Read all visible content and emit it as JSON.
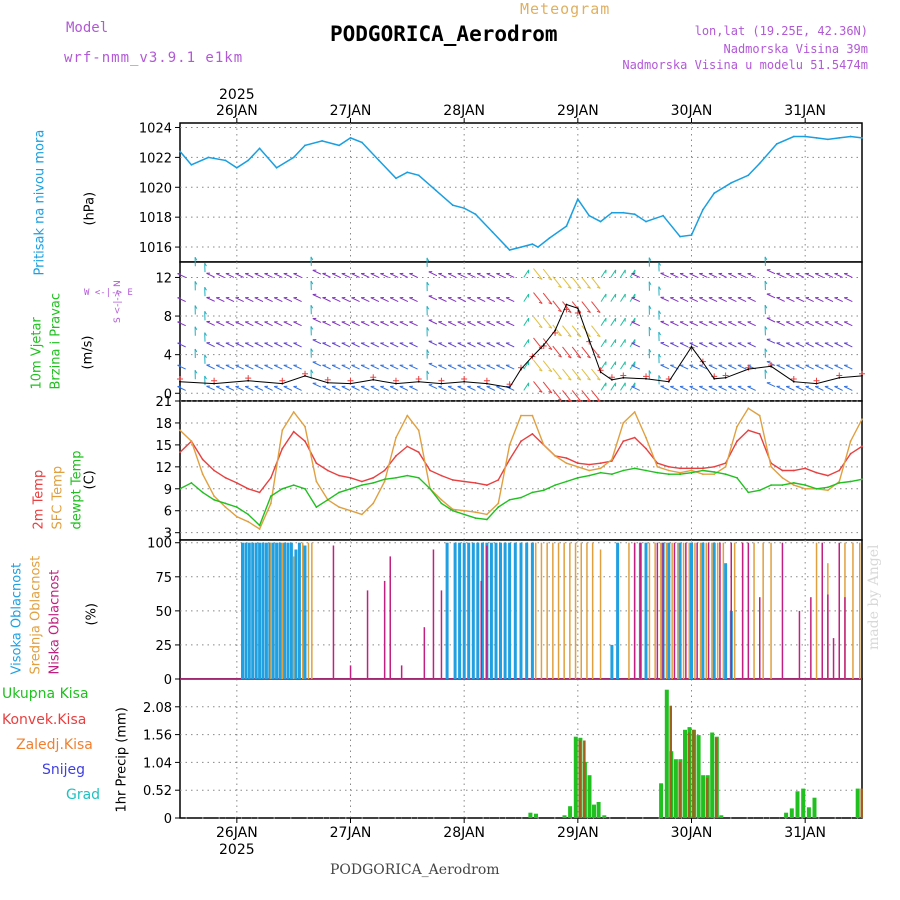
{
  "header": {
    "model_label": "Model",
    "model_name": "wrf-nmm_v3.9.1 e1km",
    "product": "Meteogram",
    "station": "PODGORICA_Aerodrom",
    "lonlat": "lon,lat (19.25E, 42.36N)",
    "elevation": "Nadmorska Visina 39m",
    "elevation_model": "Nadmorska Visina u modelu 51.5474m"
  },
  "footer": {
    "station": "PODGORICA_Aerodrom"
  },
  "watermark": "made by Angel",
  "time_axis": {
    "year": "2025",
    "ticks": [
      "26JAN",
      "27JAN",
      "28JAN",
      "29JAN",
      "30JAN",
      "31JAN"
    ],
    "start": 25.5,
    "end": 31.5
  },
  "colors": {
    "pressure": "#1a9fe0",
    "t2m": "#e84040",
    "sfc": "#e0a040",
    "dewpt": "#20c020",
    "cloud_high": "#20a0e0",
    "cloud_mid": "#e0a040",
    "cloud_low": "#c02080",
    "precip_total": "#20c020",
    "precip_conv": "#e84040",
    "precip_frz": "#f08030",
    "precip_snow": "#4040e0",
    "precip_hail": "#20c0c0"
  },
  "panels": {
    "pressure": {
      "label": "Pritisak na nivou mora",
      "unit": "(hPa)"
    },
    "wind": {
      "label1": "10m Vjetar",
      "label2": "Brzina i Pravac",
      "unit": "(m/s)",
      "compass": "W <-|-> E",
      "compass_ns": "S <-|-> N"
    },
    "temp": {
      "label1": "2m Temp",
      "label2": "SFC Temp",
      "label3": "dewpt Temp",
      "unit": "(C)"
    },
    "cloud": {
      "label1": "Visoka Oblacnost",
      "label2": "Srednja Oblacnost",
      "label3": "Niska Oblacnost",
      "unit": "(%)"
    },
    "precip": {
      "unit": "1hr Precip (mm)",
      "legend": [
        "Ukupna Kisa",
        "Konvek.Kisa",
        "Zaledj.Kisa",
        "Snijeg",
        "Grad"
      ]
    }
  },
  "chart_data": [
    {
      "type": "line",
      "title": "",
      "ylabel": "Pritisak na nivou mora (hPa)",
      "ylim": [
        1015,
        1024.3
      ],
      "yticks": [
        1016,
        1018,
        1020,
        1022,
        1024
      ],
      "series": [
        {
          "name": "",
          "x": [
            25.5,
            25.6,
            25.75,
            25.9,
            26.0,
            26.1,
            26.2,
            26.35,
            26.5,
            26.6,
            26.75,
            26.9,
            27.0,
            27.1,
            27.25,
            27.4,
            27.5,
            27.6,
            27.75,
            27.9,
            28.0,
            28.1,
            28.25,
            28.4,
            28.5,
            28.6,
            28.65,
            28.75,
            28.9,
            29.0,
            29.1,
            29.2,
            29.3,
            29.4,
            29.5,
            29.6,
            29.75,
            29.9,
            30.0,
            30.1,
            30.2,
            30.35,
            30.5,
            30.6,
            30.75,
            30.9,
            31.0,
            31.1,
            31.2,
            31.3,
            31.4,
            31.5
          ],
          "y": [
            1022.4,
            1021.5,
            1022.0,
            1021.8,
            1021.3,
            1021.8,
            1022.6,
            1021.3,
            1022.0,
            1022.8,
            1023.1,
            1022.8,
            1023.3,
            1023.0,
            1021.8,
            1020.6,
            1021.0,
            1020.8,
            1019.8,
            1018.8,
            1018.6,
            1018.2,
            1017.0,
            1015.8,
            1016.0,
            1016.2,
            1016.0,
            1016.6,
            1017.4,
            1019.2,
            1018.1,
            1017.7,
            1018.3,
            1018.3,
            1018.2,
            1017.7,
            1018.1,
            1016.7,
            1016.8,
            1018.5,
            1019.6,
            1020.3,
            1020.8,
            1021.6,
            1022.9,
            1023.4,
            1023.4,
            1023.3,
            1023.2,
            1023.3,
            1023.4,
            1023.3
          ]
        }
      ]
    },
    {
      "type": "line",
      "title": "",
      "ylabel": "10m Vjetar Brzina i Pravac (m/s)",
      "ylim": [
        -0.8,
        13.6
      ],
      "yticks": [
        0,
        4,
        8,
        12
      ],
      "series": [
        {
          "name": "",
          "x": [
            25.5,
            25.8,
            26.1,
            26.4,
            26.6,
            26.8,
            27.0,
            27.2,
            27.4,
            27.6,
            27.8,
            28.0,
            28.2,
            28.4,
            28.5,
            28.6,
            28.7,
            28.8,
            28.9,
            29.0,
            29.1,
            29.2,
            29.3,
            29.4,
            29.6,
            29.8,
            30.0,
            30.1,
            30.2,
            30.3,
            30.5,
            30.7,
            30.9,
            31.1,
            31.3,
            31.5
          ],
          "y": [
            1.2,
            1.0,
            1.3,
            1.0,
            1.8,
            1.1,
            1.0,
            1.4,
            1.0,
            1.2,
            1.0,
            1.2,
            1.0,
            0.6,
            2.5,
            3.8,
            5.0,
            6.5,
            9.2,
            8.8,
            5.5,
            2.2,
            1.4,
            1.6,
            1.5,
            1.2,
            4.8,
            3.2,
            1.5,
            1.6,
            2.5,
            2.8,
            1.2,
            1.0,
            1.6,
            1.8
          ]
        }
      ]
    },
    {
      "type": "line",
      "title": "",
      "ylabel": "(C)",
      "ylim": [
        2,
        21
      ],
      "yticks": [
        3,
        6,
        9,
        12,
        15,
        18,
        21
      ],
      "x": [
        25.5,
        25.6,
        25.7,
        25.8,
        25.9,
        26.0,
        26.1,
        26.2,
        26.3,
        26.4,
        26.5,
        26.6,
        26.7,
        26.8,
        26.9,
        27.0,
        27.1,
        27.2,
        27.3,
        27.4,
        27.5,
        27.6,
        27.7,
        27.8,
        27.9,
        28.0,
        28.1,
        28.2,
        28.3,
        28.4,
        28.5,
        28.6,
        28.7,
        28.8,
        28.9,
        29.0,
        29.1,
        29.2,
        29.3,
        29.4,
        29.5,
        29.6,
        29.7,
        29.8,
        29.9,
        30.0,
        30.1,
        30.2,
        30.3,
        30.4,
        30.5,
        30.6,
        30.7,
        30.8,
        30.9,
        31.0,
        31.1,
        31.2,
        31.3,
        31.4,
        31.5
      ],
      "series": [
        {
          "name": "2m Temp",
          "y": [
            14.0,
            15.5,
            13.0,
            11.5,
            10.5,
            9.8,
            9.0,
            8.5,
            10.5,
            14.5,
            16.8,
            15.5,
            12.5,
            11.5,
            10.8,
            10.5,
            10.0,
            10.5,
            11.5,
            13.5,
            14.8,
            14.0,
            11.5,
            10.8,
            10.2,
            10.0,
            9.8,
            9.5,
            10.2,
            13.0,
            15.5,
            16.5,
            15.0,
            13.5,
            13.2,
            12.5,
            12.3,
            12.5,
            12.8,
            15.5,
            16.0,
            14.5,
            12.5,
            12.0,
            11.8,
            11.8,
            11.8,
            12.0,
            12.5,
            15.5,
            17.0,
            16.5,
            12.5,
            11.5,
            11.5,
            11.8,
            11.2,
            10.8,
            11.5,
            13.8,
            14.8
          ]
        },
        {
          "name": "SFC Temp",
          "y": [
            17.0,
            15.5,
            11.0,
            8.0,
            6.5,
            5.2,
            4.5,
            3.5,
            7.0,
            17.0,
            19.5,
            17.5,
            10.0,
            7.5,
            6.5,
            6.0,
            5.5,
            7.0,
            10.0,
            16.0,
            19.0,
            17.0,
            9.0,
            7.5,
            6.2,
            6.0,
            5.8,
            5.5,
            7.0,
            15.0,
            19.0,
            19.0,
            15.0,
            13.5,
            12.5,
            12.0,
            11.5,
            11.8,
            13.0,
            18.0,
            19.5,
            16.0,
            12.0,
            11.5,
            11.2,
            11.5,
            11.0,
            11.0,
            12.0,
            17.5,
            20.0,
            19.0,
            12.0,
            10.5,
            9.5,
            9.0,
            9.0,
            8.8,
            10.0,
            15.5,
            18.5
          ]
        },
        {
          "name": "dewpt Temp",
          "y": [
            9.0,
            9.8,
            8.5,
            7.5,
            7.0,
            6.5,
            5.5,
            4.0,
            8.0,
            9.0,
            9.5,
            9.0,
            6.5,
            7.5,
            8.5,
            9.0,
            9.5,
            9.8,
            10.3,
            10.5,
            10.8,
            10.5,
            9.0,
            7.0,
            6.0,
            5.5,
            5.0,
            4.8,
            6.5,
            7.5,
            7.8,
            8.5,
            8.8,
            9.5,
            10.0,
            10.5,
            10.8,
            11.2,
            11.0,
            11.5,
            11.8,
            11.5,
            11.2,
            11.0,
            11.0,
            11.2,
            11.5,
            11.3,
            11.0,
            10.5,
            8.5,
            8.8,
            9.5,
            9.5,
            9.8,
            9.5,
            9.0,
            9.2,
            9.8,
            10.0,
            10.3
          ]
        }
      ]
    },
    {
      "type": "bar",
      "title": "",
      "ylabel": "(%)",
      "ylim": [
        0,
        102
      ],
      "yticks": [
        0,
        25,
        50,
        75,
        100
      ],
      "series": [
        {
          "name": "Visoka Oblacnost",
          "x": [
            26.05,
            26.08,
            26.11,
            26.14,
            26.17,
            26.2,
            26.23,
            26.26,
            26.29,
            26.32,
            26.35,
            26.38,
            26.42,
            26.45,
            26.48,
            26.52,
            26.55,
            26.6,
            27.85,
            27.92,
            27.96,
            28.0,
            28.04,
            28.08,
            28.12,
            28.16,
            28.2,
            28.24,
            28.28,
            28.32,
            28.36,
            28.4,
            28.45,
            28.5,
            28.55,
            28.6,
            29.3,
            29.35,
            29.55,
            29.6,
            29.75,
            29.8,
            29.9,
            30.0,
            30.1,
            30.2,
            30.3,
            30.35
          ],
          "y": [
            100,
            100,
            100,
            100,
            100,
            100,
            100,
            100,
            100,
            100,
            100,
            100,
            100,
            100,
            100,
            95,
            100,
            98,
            100,
            100,
            100,
            100,
            100,
            100,
            100,
            100,
            100,
            100,
            100,
            100,
            100,
            100,
            100,
            100,
            100,
            100,
            25,
            100,
            100,
            100,
            100,
            100,
            100,
            100,
            100,
            100,
            85,
            50
          ]
        },
        {
          "name": "Srednja Oblacnost",
          "x": [
            26.3,
            26.4,
            26.5,
            26.58,
            26.63,
            26.66,
            28.63,
            28.68,
            28.73,
            28.78,
            28.83,
            28.88,
            28.93,
            28.98,
            29.03,
            29.08,
            29.13,
            29.2,
            29.45,
            29.5,
            29.63,
            29.68,
            29.73,
            29.78,
            29.83,
            29.88,
            29.93,
            29.98,
            30.03,
            30.08,
            30.13,
            30.18,
            30.23,
            30.28,
            30.38,
            30.45,
            30.55,
            30.63,
            30.7,
            31.1,
            31.2,
            31.35,
            31.42,
            31.48
          ],
          "y": [
            100,
            100,
            90,
            100,
            100,
            100,
            100,
            100,
            100,
            100,
            100,
            100,
            100,
            100,
            100,
            100,
            100,
            95,
            100,
            100,
            100,
            100,
            100,
            100,
            100,
            100,
            100,
            100,
            100,
            100,
            100,
            100,
            100,
            100,
            100,
            100,
            100,
            100,
            100,
            100,
            85,
            100,
            100,
            100
          ]
        },
        {
          "name": "Niska Oblacnost",
          "x": [
            26.85,
            27.0,
            27.15,
            27.3,
            27.35,
            27.45,
            27.65,
            27.73,
            27.8,
            28.15,
            28.2,
            29.5,
            29.55,
            29.7,
            29.75,
            29.85,
            29.95,
            30.05,
            30.15,
            30.25,
            30.35,
            30.45,
            30.5,
            30.6,
            30.8,
            30.95,
            31.05,
            31.15,
            31.2,
            31.25,
            31.3,
            31.35
          ],
          "y": [
            98,
            10,
            65,
            72,
            90,
            10,
            38,
            95,
            65,
            72,
            98,
            100,
            100,
            100,
            100,
            100,
            100,
            100,
            100,
            100,
            100,
            100,
            100,
            60,
            100,
            50,
            60,
            100,
            62,
            30,
            100,
            60
          ]
        }
      ]
    },
    {
      "type": "bar",
      "title": "",
      "ylabel": "1hr Precip (mm)",
      "ylim": [
        0,
        2.6
      ],
      "yticks": [
        0,
        0.52,
        1.04,
        1.56,
        2.08
      ],
      "series": [
        {
          "name": "Ukupna Kisa",
          "x": [
            28.6,
            28.65,
            28.9,
            28.95,
            29.0,
            29.04,
            29.08,
            29.12,
            29.16,
            29.2,
            29.25,
            29.75,
            29.8,
            29.84,
            29.88,
            29.92,
            29.96,
            30.0,
            30.04,
            30.08,
            30.12,
            30.16,
            30.2,
            30.24,
            30.28,
            30.85,
            30.9,
            30.95,
            31.0,
            31.05,
            31.1,
            31.48
          ],
          "y": [
            0.1,
            0.08,
            0.05,
            0.22,
            1.52,
            1.5,
            1.05,
            0.8,
            0.25,
            0.3,
            0.05,
            0.65,
            2.4,
            1.25,
            1.1,
            1.1,
            1.65,
            1.7,
            1.65,
            1.55,
            0.8,
            0.8,
            1.6,
            1.52,
            0.05,
            0.1,
            0.18,
            0.5,
            0.55,
            0.2,
            0.38,
            0.55
          ]
        },
        {
          "name": "Konvek.Kisa",
          "x": [
            29.0,
            29.04,
            29.8,
            29.88,
            29.96,
            30.0,
            30.12,
            30.2,
            31.48
          ],
          "y": [
            1.45,
            1.45,
            2.1,
            1.05,
            1.6,
            1.65,
            0.75,
            1.5,
            0.55
          ]
        }
      ]
    }
  ]
}
